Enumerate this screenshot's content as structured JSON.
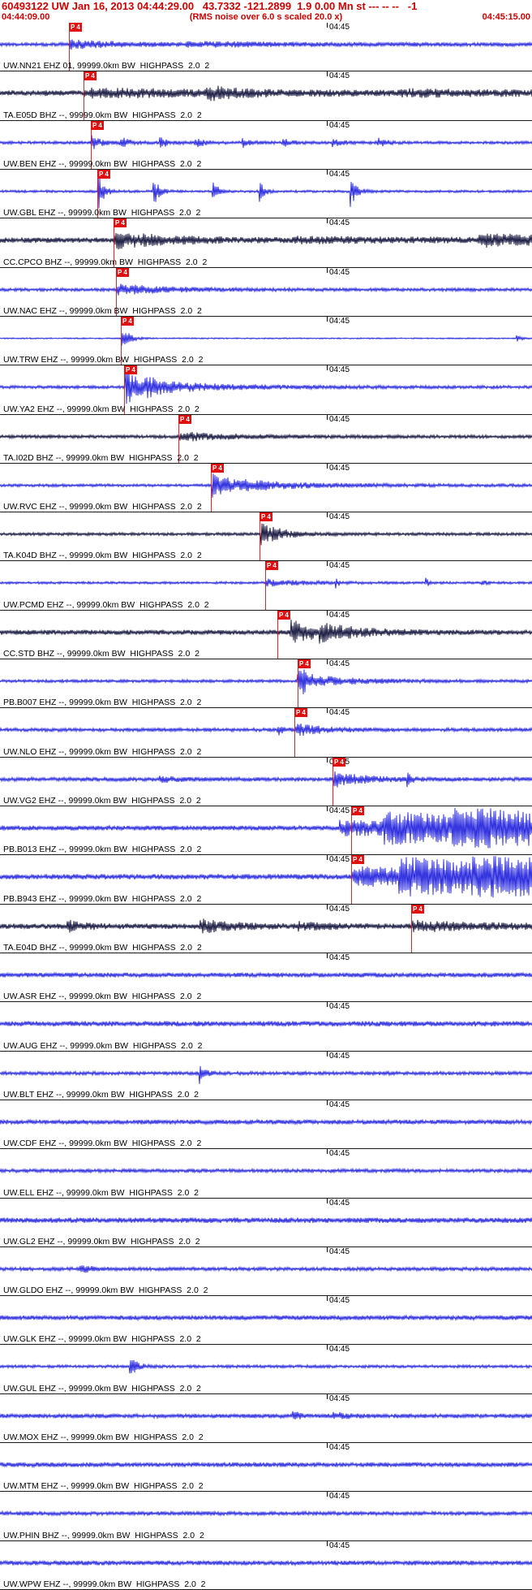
{
  "header": {
    "title": "60493122 UW Jan 16, 2013 04:44:29.00   43.7332 -121.2899  1.9 0.00 Mn st --- -- --   -1",
    "window_start": "04:44:09.00",
    "scale_note": "(RMS noise over 6.0 s scaled 20.0 x)",
    "window_end": "04:45:15.00"
  },
  "time_tick_label": "04:45",
  "pick_label": "P 4",
  "colors": {
    "header_text": "#cc0000",
    "blue": "#2121dd",
    "dark": "#0e0e38",
    "pick": "#e01010",
    "separator": "#1a1a1a"
  },
  "traces": [
    {
      "station": "UW.NN21",
      "label": "UW.NN21 EHZ 01, 99999.0km BW  HIGHPASS  2.0  2",
      "color": "blue",
      "pick": 0.13,
      "wave": {
        "noise": 2.3,
        "events": [
          {
            "t": 0.131,
            "amp": 4.5,
            "decay": 0.1
          },
          {
            "t": 0.35,
            "amp": 2,
            "decay": 0.25
          }
        ]
      }
    },
    {
      "station": "TA.E05D",
      "label": "TA.E05D BHZ --, 99999.0km BW  HIGHPASS  2.0  2",
      "color": "dark",
      "pick": 0.157,
      "wave": {
        "noise": 3.6,
        "events": [
          {
            "t": 0.158,
            "amp": 4,
            "decay": 0.3
          },
          {
            "t": 0.385,
            "amp": 7,
            "decay": 0.045
          },
          {
            "t": 0.75,
            "amp": 2.5,
            "decay": 0.2
          }
        ]
      }
    },
    {
      "station": "UW.BEN",
      "label": "UW.BEN EHZ --, 99999.0km BW  HIGHPASS  2.0  2",
      "color": "blue",
      "pick": 0.171,
      "wave": {
        "noise": 1.9,
        "events": [
          {
            "t": 0.172,
            "amp": 9,
            "decay": 0.015
          },
          {
            "t": 0.225,
            "amp": 7,
            "decay": 0.015
          },
          {
            "t": 0.3,
            "amp": 6,
            "decay": 0.018
          },
          {
            "t": 0.365,
            "amp": 5,
            "decay": 0.02
          },
          {
            "t": 0.455,
            "amp": 6,
            "decay": 0.015
          },
          {
            "t": 0.53,
            "amp": 5,
            "decay": 0.015
          },
          {
            "t": 0.625,
            "amp": 4,
            "decay": 0.02
          },
          {
            "t": 0.71,
            "amp": 5,
            "decay": 0.015
          }
        ]
      }
    },
    {
      "station": "UW.GBL",
      "label": "UW.GBL EHZ --, 99999.0km BW  HIGHPASS  2.0  2",
      "color": "blue",
      "pick": 0.183,
      "wave": {
        "noise": 1.6,
        "events": [
          {
            "t": 0.184,
            "amp": 25,
            "decay": 0.01
          },
          {
            "t": 0.287,
            "amp": 22,
            "decay": 0.01
          },
          {
            "t": 0.398,
            "amp": 20,
            "decay": 0.009
          },
          {
            "t": 0.487,
            "amp": 16,
            "decay": 0.008
          },
          {
            "t": 0.658,
            "amp": 21,
            "decay": 0.01
          }
        ]
      }
    },
    {
      "station": "CC.CPCO",
      "label": "CC.CPCO BHZ --, 99999.0km BW  HIGHPASS  2.0  2",
      "color": "dark",
      "pick": 0.213,
      "wave": {
        "noise": 3.4,
        "events": [
          {
            "t": 0.214,
            "amp": 9,
            "decay": 0.1
          },
          {
            "t": 0.55,
            "amp": 2,
            "decay": 0.3
          },
          {
            "t": 0.9,
            "amp": 6,
            "decay": 0.15
          }
        ]
      }
    },
    {
      "station": "UW.NAC",
      "label": "UW.NAC EHZ --, 99999.0km BW  HIGHPASS  2.0  2",
      "color": "blue",
      "pick": 0.218,
      "wave": {
        "noise": 2.1,
        "events": [
          {
            "t": 0.219,
            "amp": 6,
            "decay": 0.09
          }
        ]
      }
    },
    {
      "station": "UW.TRW",
      "label": "UW.TRW EHZ --, 99999.0km BW  HIGHPASS  2.0  2",
      "color": "blue",
      "pick": 0.227,
      "wave": {
        "noise": 0.8,
        "events": [
          {
            "t": 0.228,
            "amp": 20,
            "decay": 0.012
          },
          {
            "t": 0.97,
            "amp": 5,
            "decay": 0.008
          }
        ]
      }
    },
    {
      "station": "UW.YA2",
      "label": "UW.YA2 EHZ --, 99999.0km BW  HIGHPASS  2.0  2",
      "color": "blue",
      "pick": 0.233,
      "wave": {
        "noise": 2.0,
        "events": [
          {
            "t": 0.236,
            "amp": 22,
            "decay": 0.035
          },
          {
            "t": 0.27,
            "amp": 6,
            "decay": 0.15
          }
        ]
      }
    },
    {
      "station": "TA.I02D",
      "label": "TA.I02D BHZ --, 99999.0km BW  HIGHPASS  2.0  2",
      "color": "dark",
      "pick": 0.335,
      "wave": {
        "noise": 2.1,
        "events": [
          {
            "t": 0.338,
            "amp": 5,
            "decay": 0.1
          }
        ]
      }
    },
    {
      "station": "UW.RVC",
      "label": "UW.RVC EHZ --, 99999.0km BW  HIGHPASS  2.0  2",
      "color": "blue",
      "pick": 0.396,
      "wave": {
        "noise": 1.9,
        "events": [
          {
            "t": 0.398,
            "amp": 16,
            "decay": 0.045
          },
          {
            "t": 0.45,
            "amp": 4,
            "decay": 0.15
          }
        ]
      }
    },
    {
      "station": "TA.K04D",
      "label": "TA.K04D BHZ --, 99999.0km BW  HIGHPASS  2.0  2",
      "color": "dark",
      "pick": 0.488,
      "wave": {
        "noise": 1.9,
        "events": [
          {
            "t": 0.49,
            "amp": 13,
            "decay": 0.04
          }
        ]
      }
    },
    {
      "station": "UW.PCMD",
      "label": "UW.PCMD EHZ --, 99999.0km BW  HIGHPASS  2.0  2",
      "color": "blue",
      "pick": 0.499,
      "wave": {
        "noise": 1.6,
        "events": [
          {
            "t": 0.5,
            "amp": 4,
            "decay": 0.07
          },
          {
            "t": 0.63,
            "amp": 6,
            "decay": 0.006
          },
          {
            "t": 0.8,
            "amp": 5,
            "decay": 0.006
          },
          {
            "t": 0.905,
            "amp": 4,
            "decay": 0.006
          }
        ]
      }
    },
    {
      "station": "CC.STD",
      "label": "CC.STD BHZ --, 99999.0km BW  HIGHPASS  2.0  2",
      "color": "dark",
      "pick": 0.521,
      "wave": {
        "noise": 3.1,
        "events": [
          {
            "t": 0.545,
            "amp": 14,
            "decay": 0.055
          },
          {
            "t": 0.6,
            "amp": 6,
            "decay": 0.08
          }
        ]
      }
    },
    {
      "station": "PB.B007",
      "label": "PB.B007 EHZ --, 99999.0km BW  HIGHPASS  2.0  2",
      "color": "blue",
      "pick": 0.559,
      "wave": {
        "noise": 1.9,
        "events": [
          {
            "t": 0.559,
            "amp": 24,
            "decay": 0.012
          },
          {
            "t": 0.57,
            "amp": 7,
            "decay": 0.09
          }
        ]
      }
    },
    {
      "station": "UW.NLO",
      "label": "UW.NLO EHZ --, 99999.0km BW  HIGHPASS  2.0  2",
      "color": "blue",
      "pick": 0.553,
      "wave": {
        "noise": 2.3,
        "events": [
          {
            "t": 0.52,
            "amp": 9,
            "decay": 0.008
          },
          {
            "t": 0.556,
            "amp": 7,
            "decay": 0.05
          }
        ]
      }
    },
    {
      "station": "UW.VG2",
      "label": "UW.VG2 EHZ --, 99999.0km BW  HIGHPASS  2.0  2",
      "color": "blue",
      "pick": 0.625,
      "wave": {
        "noise": 2.6,
        "events": [
          {
            "t": 0.3,
            "amp": 3,
            "decay": 0.03
          },
          {
            "t": 0.628,
            "amp": 9,
            "decay": 0.05
          },
          {
            "t": 0.765,
            "amp": 7,
            "decay": 0.008
          }
        ]
      }
    },
    {
      "station": "PB.B013",
      "label": "PB.B013 EHZ --, 99999.0km BW  HIGHPASS  2.0  2",
      "color": "blue",
      "pick": 0.66,
      "wave": {
        "noise": 3.0,
        "events": [
          {
            "t": 0.638,
            "amp": 8,
            "decay": 0.5
          },
          {
            "t": 0.72,
            "amp": 12,
            "decay": 0.5
          },
          {
            "t": 0.85,
            "amp": 11,
            "decay": 0.5
          }
        ]
      }
    },
    {
      "station": "PB.B943",
      "label": "PB.B943 EHZ --, 99999.0km BW  HIGHPASS  2.0  2",
      "color": "blue",
      "pick": 0.66,
      "wave": {
        "noise": 3.4,
        "events": [
          {
            "t": 0.662,
            "amp": 10,
            "decay": 0.5
          },
          {
            "t": 0.75,
            "amp": 14,
            "decay": 0.5
          },
          {
            "t": 0.88,
            "amp": 13,
            "decay": 0.5
          }
        ]
      }
    },
    {
      "station": "TA.E04D",
      "label": "TA.E04D BHZ --, 99999.0km BW  HIGHPASS  2.0  2",
      "color": "dark",
      "pick": 0.773,
      "wave": {
        "noise": 3.3,
        "events": [
          {
            "t": 0.125,
            "amp": 6,
            "decay": 0.035
          },
          {
            "t": 0.375,
            "amp": 7,
            "decay": 0.06
          },
          {
            "t": 0.56,
            "amp": 4,
            "decay": 0.05
          },
          {
            "t": 0.775,
            "amp": 5,
            "decay": 0.15
          }
        ]
      }
    },
    {
      "station": "UW.ASR",
      "label": "UW.ASR EHZ --, 99999.0km BW  HIGHPASS  2.0  2",
      "color": "blue",
      "pick": null,
      "wave": {
        "noise": 3.0,
        "events": []
      }
    },
    {
      "station": "UW.AUG",
      "label": "UW.AUG EHZ --, 99999.0km BW  HIGHPASS  2.0  2",
      "color": "blue",
      "pick": null,
      "wave": {
        "noise": 3.3,
        "events": []
      }
    },
    {
      "station": "UW.BLT",
      "label": "UW.BLT EHZ --, 99999.0km BW  HIGHPASS  2.0  2",
      "color": "blue",
      "pick": null,
      "wave": {
        "noise": 2.3,
        "events": [
          {
            "t": 0.375,
            "amp": 12,
            "decay": 0.008
          }
        ]
      }
    },
    {
      "station": "UW.CDF",
      "label": "UW.CDF EHZ --, 99999.0km BW  HIGHPASS  2.0  2",
      "color": "blue",
      "pick": null,
      "wave": {
        "noise": 2.9,
        "events": []
      }
    },
    {
      "station": "UW.ELL",
      "label": "UW.ELL EHZ --, 99999.0km BW  HIGHPASS  2.0  2",
      "color": "blue",
      "pick": null,
      "wave": {
        "noise": 2.3,
        "events": []
      }
    },
    {
      "station": "UW.GL2",
      "label": "UW.GL2 EHZ --, 99999.0km BW  HIGHPASS  2.0  2",
      "color": "blue",
      "pick": null,
      "wave": {
        "noise": 3.3,
        "events": []
      }
    },
    {
      "station": "UW.GLDO",
      "label": "UW.GLDO EHZ --, 99999.0km BW  HIGHPASS  2.0  2",
      "color": "blue",
      "pick": null,
      "wave": {
        "noise": 2.3,
        "events": [
          {
            "t": 0.15,
            "amp": 5,
            "decay": 0.02
          }
        ]
      }
    },
    {
      "station": "UW.GLK",
      "label": "UW.GLK EHZ --, 99999.0km BW  HIGHPASS  2.0  2",
      "color": "blue",
      "pick": null,
      "wave": {
        "noise": 2.9,
        "events": []
      }
    },
    {
      "station": "UW.GUL",
      "label": "UW.GUL EHZ --, 99999.0km BW  HIGHPASS  2.0  2",
      "color": "blue",
      "pick": null,
      "wave": {
        "noise": 1.9,
        "events": [
          {
            "t": 0.243,
            "amp": 14,
            "decay": 0.012
          }
        ]
      }
    },
    {
      "station": "UW.MOX",
      "label": "UW.MOX EHZ --, 99999.0km BW  HIGHPASS  2.0  2",
      "color": "blue",
      "pick": null,
      "wave": {
        "noise": 2.7,
        "events": [
          {
            "t": 0.55,
            "amp": 4,
            "decay": 0.02
          },
          {
            "t": 0.625,
            "amp": 4,
            "decay": 0.02
          }
        ]
      }
    },
    {
      "station": "UW.MTM",
      "label": "UW.MTM EHZ --, 99999.0km BW  HIGHPASS  2.0  2",
      "color": "blue",
      "pick": null,
      "wave": {
        "noise": 2.9,
        "events": []
      }
    },
    {
      "station": "UW.PHIN",
      "label": "UW.PHIN BHZ --, 99999.0km BW  HIGHPASS  2.0  2",
      "color": "blue",
      "pick": null,
      "wave": {
        "noise": 2.5,
        "events": []
      }
    },
    {
      "station": "UW.WPW",
      "label": "UW.WPW EHZ --, 99999.0km BW  HIGHPASS  2.0  2",
      "color": "blue",
      "pick": null,
      "wave": {
        "noise": 2.9,
        "events": []
      }
    }
  ]
}
